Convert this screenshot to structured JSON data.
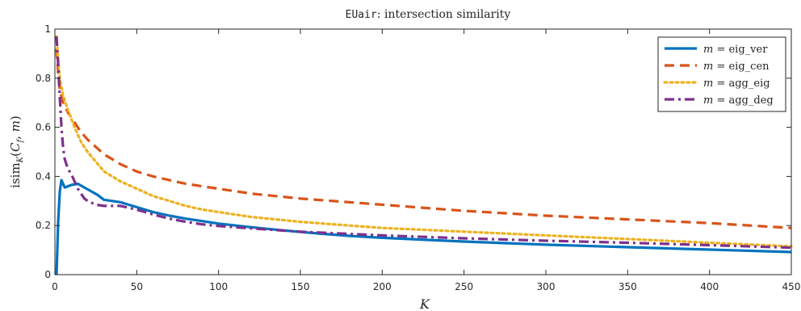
{
  "chart_data": {
    "type": "line",
    "title_mono": "EUair",
    "title_rest": ": intersection similarity",
    "xlabel": "K",
    "ylabel": "isim_K(C_f, m)",
    "xlim": [
      0,
      450
    ],
    "ylim": [
      0,
      1
    ],
    "x_ticks": [
      0,
      50,
      100,
      150,
      200,
      250,
      300,
      350,
      400,
      450
    ],
    "y_ticks": [
      0,
      0.2,
      0.4,
      0.6,
      0.8,
      1
    ],
    "grid": false,
    "legend_position": "top-right",
    "series": [
      {
        "name": "m = eig_ver",
        "color": "#0072BD",
        "dash": "solid",
        "points": [
          [
            1,
            0
          ],
          [
            2,
            0.22
          ],
          [
            3,
            0.34
          ],
          [
            4,
            0.385
          ],
          [
            5,
            0.37
          ],
          [
            6,
            0.355
          ],
          [
            8,
            0.36
          ],
          [
            10,
            0.365
          ],
          [
            14,
            0.37
          ],
          [
            18,
            0.355
          ],
          [
            22,
            0.34
          ],
          [
            26,
            0.325
          ],
          [
            30,
            0.305
          ],
          [
            35,
            0.3
          ],
          [
            40,
            0.295
          ],
          [
            45,
            0.285
          ],
          [
            50,
            0.275
          ],
          [
            60,
            0.255
          ],
          [
            70,
            0.24
          ],
          [
            80,
            0.228
          ],
          [
            90,
            0.218
          ],
          [
            100,
            0.208
          ],
          [
            120,
            0.193
          ],
          [
            140,
            0.18
          ],
          [
            160,
            0.168
          ],
          [
            180,
            0.158
          ],
          [
            200,
            0.15
          ],
          [
            250,
            0.135
          ],
          [
            300,
            0.122
          ],
          [
            350,
            0.112
          ],
          [
            400,
            0.102
          ],
          [
            450,
            0.092
          ]
        ]
      },
      {
        "name": "m = eig_cen",
        "color": "#D95319",
        "dash": "dashed",
        "points": [
          [
            1,
            0.92
          ],
          [
            2,
            0.82
          ],
          [
            3,
            0.75
          ],
          [
            5,
            0.7
          ],
          [
            8,
            0.66
          ],
          [
            12,
            0.62
          ],
          [
            16,
            0.58
          ],
          [
            20,
            0.55
          ],
          [
            25,
            0.52
          ],
          [
            30,
            0.49
          ],
          [
            40,
            0.45
          ],
          [
            50,
            0.42
          ],
          [
            60,
            0.4
          ],
          [
            70,
            0.385
          ],
          [
            80,
            0.37
          ],
          [
            90,
            0.36
          ],
          [
            100,
            0.35
          ],
          [
            120,
            0.33
          ],
          [
            150,
            0.31
          ],
          [
            200,
            0.285
          ],
          [
            250,
            0.26
          ],
          [
            300,
            0.24
          ],
          [
            350,
            0.225
          ],
          [
            400,
            0.21
          ],
          [
            450,
            0.19
          ]
        ]
      },
      {
        "name": "m = agg_eig",
        "color": "#EDB120",
        "dash": "dotted",
        "points": [
          [
            1,
            0.97
          ],
          [
            2,
            0.87
          ],
          [
            3,
            0.8
          ],
          [
            5,
            0.73
          ],
          [
            8,
            0.67
          ],
          [
            12,
            0.6
          ],
          [
            16,
            0.54
          ],
          [
            20,
            0.5
          ],
          [
            25,
            0.46
          ],
          [
            30,
            0.42
          ],
          [
            40,
            0.38
          ],
          [
            50,
            0.35
          ],
          [
            60,
            0.32
          ],
          [
            70,
            0.3
          ],
          [
            80,
            0.28
          ],
          [
            90,
            0.265
          ],
          [
            100,
            0.255
          ],
          [
            120,
            0.235
          ],
          [
            150,
            0.215
          ],
          [
            200,
            0.19
          ],
          [
            250,
            0.175
          ],
          [
            300,
            0.16
          ],
          [
            350,
            0.145
          ],
          [
            400,
            0.13
          ],
          [
            450,
            0.115
          ]
        ]
      },
      {
        "name": "m = agg_deg",
        "color": "#7E2F8E",
        "dash": "dashdot",
        "points": [
          [
            1,
            0.97
          ],
          [
            2,
            0.85
          ],
          [
            3,
            0.72
          ],
          [
            4,
            0.6
          ],
          [
            5,
            0.52
          ],
          [
            6,
            0.47
          ],
          [
            8,
            0.43
          ],
          [
            10,
            0.41
          ],
          [
            12,
            0.38
          ],
          [
            14,
            0.35
          ],
          [
            16,
            0.33
          ],
          [
            18,
            0.31
          ],
          [
            20,
            0.3
          ],
          [
            25,
            0.285
          ],
          [
            30,
            0.28
          ],
          [
            40,
            0.28
          ],
          [
            50,
            0.265
          ],
          [
            60,
            0.245
          ],
          [
            70,
            0.228
          ],
          [
            80,
            0.215
          ],
          [
            90,
            0.205
          ],
          [
            100,
            0.198
          ],
          [
            120,
            0.188
          ],
          [
            150,
            0.175
          ],
          [
            200,
            0.16
          ],
          [
            250,
            0.148
          ],
          [
            300,
            0.138
          ],
          [
            350,
            0.13
          ],
          [
            400,
            0.12
          ],
          [
            450,
            0.11
          ]
        ]
      }
    ]
  }
}
